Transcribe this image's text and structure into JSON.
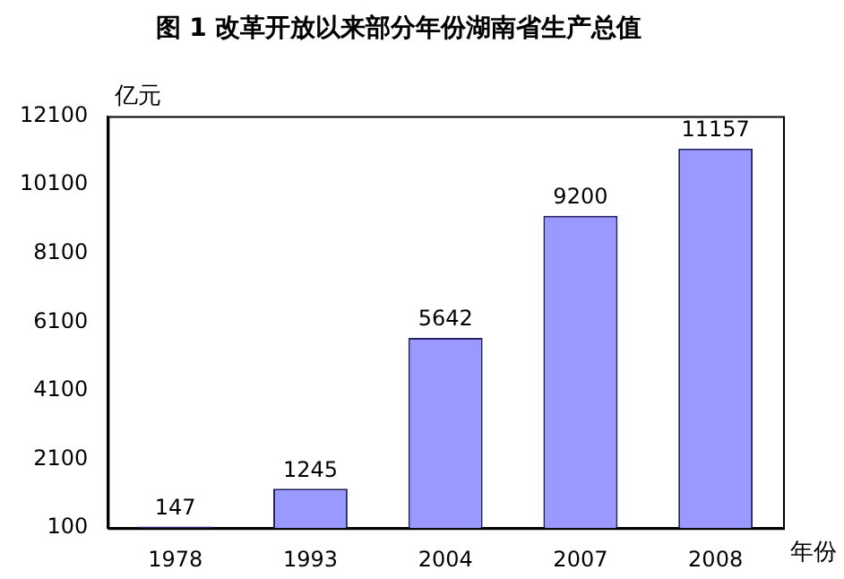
{
  "chart_data": {
    "type": "bar",
    "title": "图 1 改革开放以来部分年份湖南省生产总值",
    "xlabel": "年份",
    "ylabel": "亿元",
    "categories": [
      "1978",
      "1993",
      "2004",
      "2007",
      "2008"
    ],
    "values": [
      147,
      1245,
      5642,
      9200,
      11157
    ],
    "color": "#9999ff",
    "ylim": [
      100,
      12100
    ],
    "yticks": [
      100,
      2100,
      4100,
      6100,
      8100,
      10100,
      12100
    ],
    "grid": false,
    "legend": false,
    "data_labels": true
  }
}
